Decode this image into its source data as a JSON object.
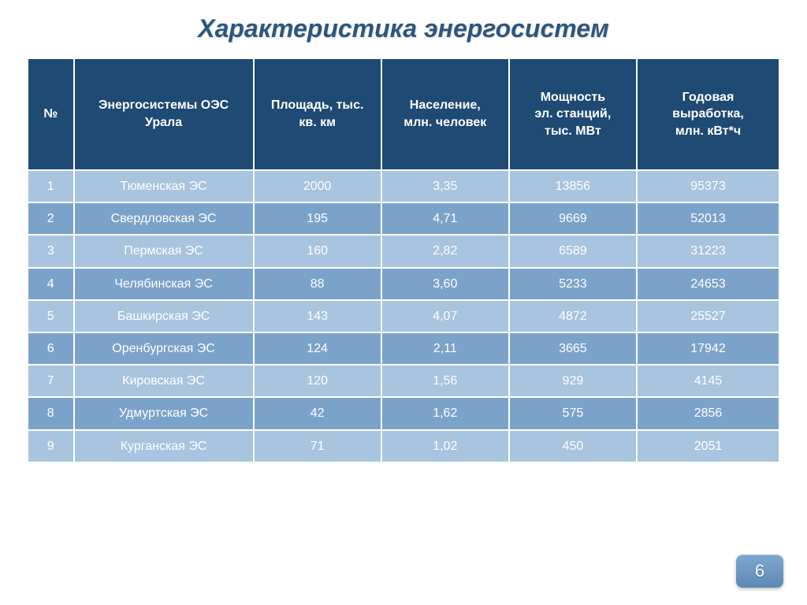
{
  "title": "Характеристика энергосистем",
  "page_number": "6",
  "colors": {
    "header_bg": "#1e4a73",
    "row_alt_a": "#a8c4df",
    "row_alt_b": "#7ba3ca",
    "title_color": "#2d567f",
    "text_color": "#ffffff",
    "badge_top": "#7ea8cf",
    "badge_bottom": "#5d88b5"
  },
  "table": {
    "columns": [
      {
        "key": "num",
        "label": "№",
        "width_pct": 6
      },
      {
        "key": "name",
        "label": "Энергосистемы ОЭС\nУрала",
        "width_pct": 24
      },
      {
        "key": "area",
        "label": "Площадь, тыс.\nкв. км",
        "width_pct": 17
      },
      {
        "key": "pop",
        "label": "Население,\nмлн. человек",
        "width_pct": 17
      },
      {
        "key": "pow",
        "label": "Мощность\nэл. станций,\nтыс. МВт",
        "width_pct": 17
      },
      {
        "key": "gen",
        "label": "Годовая\nвыработка,\nмлн. кВт*ч",
        "width_pct": 19
      }
    ],
    "header_fontsize": 16,
    "cell_fontsize": 16,
    "row_colors": [
      "#a8c4df",
      "#7ba3ca"
    ],
    "rows": [
      {
        "num": "1",
        "name": "Тюменская ЭС",
        "area": "2000",
        "pop": "3,35",
        "pow": "13856",
        "gen": "95373"
      },
      {
        "num": "2",
        "name": "Свердловская ЭС",
        "area": "195",
        "pop": "4,71",
        "pow": "9669",
        "gen": "52013"
      },
      {
        "num": "3",
        "name": "Пермская ЭС",
        "area": "160",
        "pop": "2,82",
        "pow": "6589",
        "gen": "31223"
      },
      {
        "num": "4",
        "name": "Челябинская ЭС",
        "area": "88",
        "pop": "3,60",
        "pow": "5233",
        "gen": "24653"
      },
      {
        "num": "5",
        "name": "Башкирская ЭС",
        "area": "143",
        "pop": "4,07",
        "pow": "4872",
        "gen": "25527"
      },
      {
        "num": "6",
        "name": "Оренбургская ЭС",
        "area": "124",
        "pop": "2,11",
        "pow": "3665",
        "gen": "17942"
      },
      {
        "num": "7",
        "name": "Кировская ЭС",
        "area": "120",
        "pop": "1,56",
        "pow": "929",
        "gen": "4145"
      },
      {
        "num": "8",
        "name": "Удмуртская ЭС",
        "area": "42",
        "pop": "1,62",
        "pow": "575",
        "gen": "2856"
      },
      {
        "num": "9",
        "name": "Курганская ЭС",
        "area": "71",
        "pop": "1,02",
        "pow": "450",
        "gen": "2051"
      }
    ]
  }
}
